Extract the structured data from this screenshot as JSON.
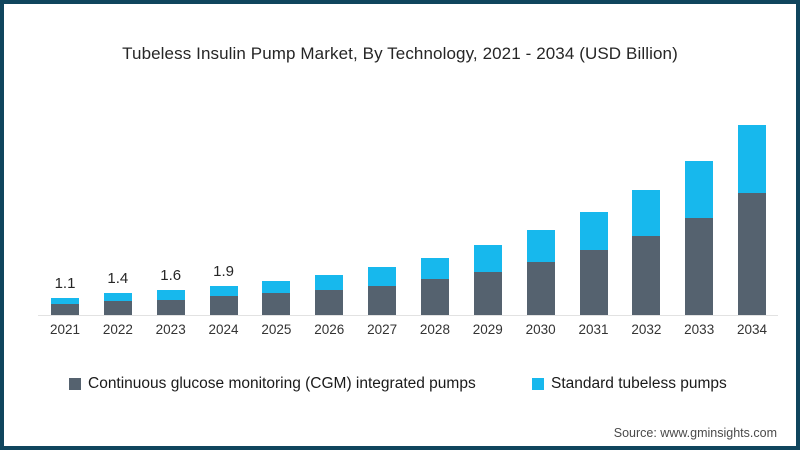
{
  "frame": {
    "border_color": "#10455d",
    "background": "#ffffff"
  },
  "title": "Tubeless Insulin Pump Market, By Technology, 2021 - 2034 (USD Billion)",
  "chart_data": {
    "type": "bar",
    "stacked": true,
    "title": "Tubeless Insulin Pump Market, By Technology, 2021 - 2034 (USD Billion)",
    "xlabel": "",
    "ylabel": "USD Billion",
    "ylim": [
      0,
      13
    ],
    "grid": false,
    "legend_position": "bottom",
    "axis_line_color": "#e2e2e2",
    "categories": [
      "2021",
      "2022",
      "2023",
      "2024",
      "2025",
      "2026",
      "2027",
      "2028",
      "2029",
      "2030",
      "2031",
      "2032",
      "2033",
      "2034"
    ],
    "series": [
      {
        "name": "Continuous glucose monitoring (CGM) integrated pumps",
        "color": "#55626f",
        "values": [
          0.7,
          0.9,
          1.0,
          1.2,
          1.4,
          1.6,
          1.9,
          2.3,
          2.8,
          3.4,
          4.2,
          5.1,
          6.3,
          7.9
        ]
      },
      {
        "name": "Standard tubeless pumps",
        "color": "#17b8ed",
        "values": [
          0.4,
          0.5,
          0.6,
          0.7,
          0.8,
          1.0,
          1.2,
          1.4,
          1.7,
          2.1,
          2.5,
          3.0,
          3.7,
          4.4
        ]
      }
    ],
    "totals": [
      1.1,
      1.4,
      1.6,
      1.9,
      2.2,
      2.6,
      3.1,
      3.7,
      4.5,
      5.5,
      6.7,
      8.1,
      10.0,
      12.3
    ],
    "data_labels": [
      "1.1",
      "1.4",
      "1.6",
      "1.9",
      "",
      "",
      "",
      "",
      "",
      "",
      "",
      "",
      "",
      ""
    ]
  },
  "legend": {
    "items": [
      {
        "label": "Continuous glucose monitoring (CGM) integrated pumps",
        "color": "#55626f"
      },
      {
        "label": "Standard tubeless pumps",
        "color": "#17b8ed"
      }
    ]
  },
  "source": {
    "text": "Source: www.gminsights.com"
  }
}
